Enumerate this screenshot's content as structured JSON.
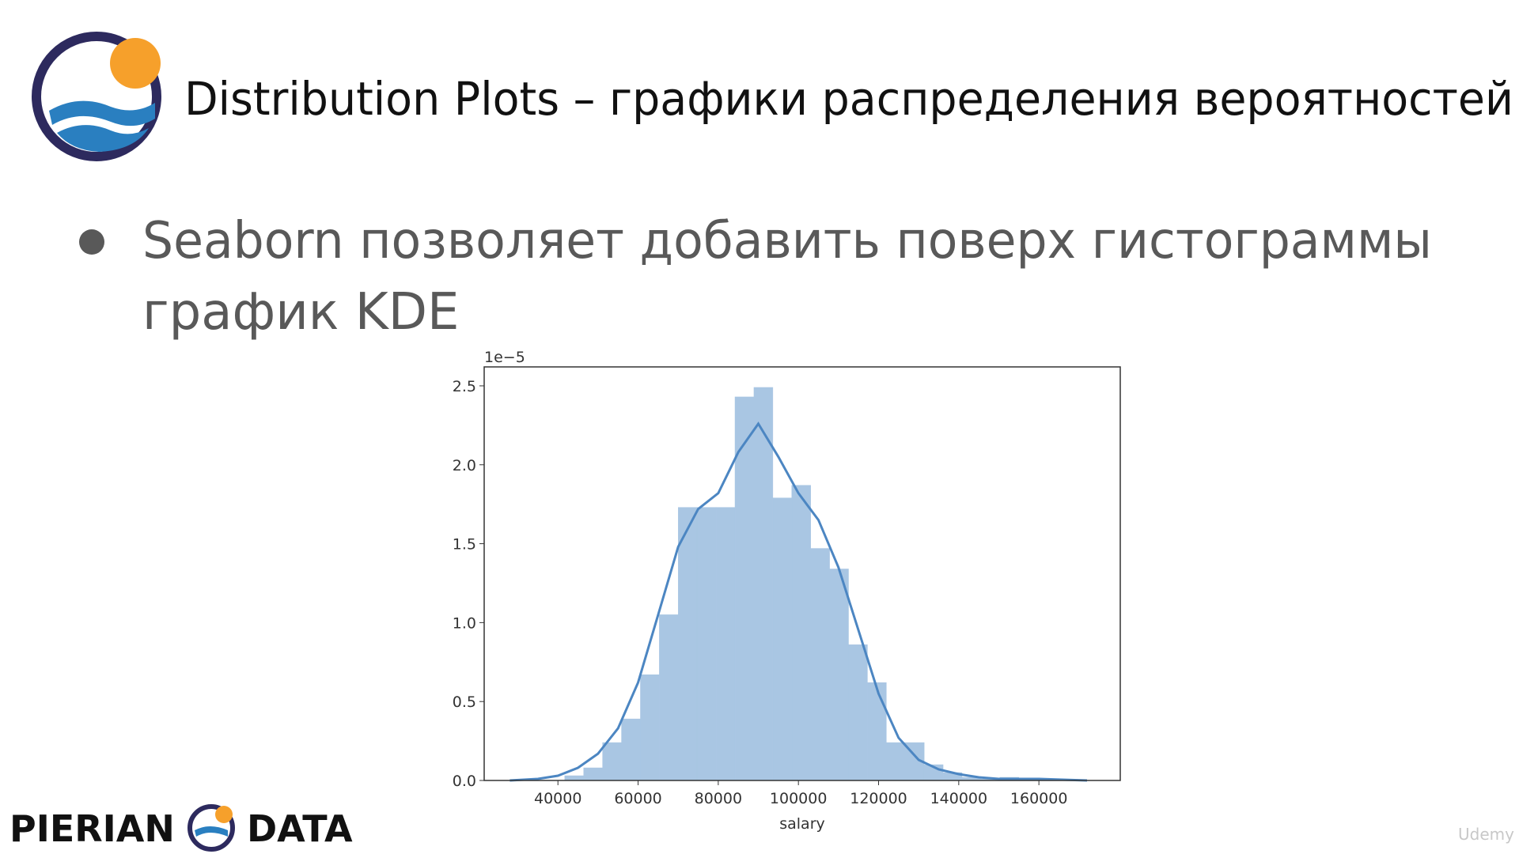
{
  "slide": {
    "title": "Distribution Plots – графики распределения вероятностей",
    "bullet_lines": [
      "Seaborn позволяет добавить поверх гистограммы",
      "график KDE"
    ]
  },
  "brand": [
    "PIERIAN",
    "DATA"
  ],
  "watermark": "Udemy",
  "chart_data": {
    "type": "histogram",
    "xlabel": "salary",
    "y_offset_label": "1e−5",
    "bins": [
      41700,
      46420,
      51140,
      55860,
      60580,
      65300,
      70020,
      74740,
      79460,
      84180,
      88900,
      93620,
      98340,
      103060,
      107780,
      112500,
      117220,
      121940,
      126660,
      131380,
      136100,
      140820,
      145540,
      150260,
      154980,
      159700
    ],
    "values": [
      0.03,
      0.08,
      0.24,
      0.39,
      0.67,
      1.05,
      1.73,
      1.73,
      1.73,
      2.43,
      2.49,
      1.79,
      1.87,
      1.47,
      1.34,
      0.86,
      0.62,
      0.24,
      0.24,
      0.1,
      0.05,
      0.02,
      0.01,
      0.02,
      0.01
    ],
    "color": "#a9c6e3",
    "kde": {
      "x": [
        28000,
        35000,
        40000,
        45000,
        50000,
        55000,
        60000,
        65000,
        70000,
        75000,
        80000,
        85000,
        90000,
        95000,
        100000,
        105000,
        110000,
        115000,
        120000,
        125000,
        130000,
        135000,
        140000,
        145000,
        150000,
        160000,
        172000
      ],
      "y": [
        0,
        0.01,
        0.03,
        0.08,
        0.17,
        0.33,
        0.62,
        1.05,
        1.48,
        1.72,
        1.82,
        2.08,
        2.26,
        2.05,
        1.82,
        1.65,
        1.35,
        0.95,
        0.55,
        0.27,
        0.13,
        0.07,
        0.04,
        0.02,
        0.01,
        0.01,
        0
      ],
      "color": "#4c86c2"
    },
    "xlim": [
      21600,
      180300
    ],
    "ylim": [
      0,
      2.62
    ],
    "xticks": [
      40000,
      60000,
      80000,
      100000,
      120000,
      140000,
      160000
    ],
    "yticks": [
      {
        "value": 0,
        "label": "0.0"
      },
      0.5,
      {
        "value": 1,
        "label": "1.0"
      },
      1.5,
      {
        "value": 2,
        "label": "2.0"
      },
      2.5
    ]
  }
}
